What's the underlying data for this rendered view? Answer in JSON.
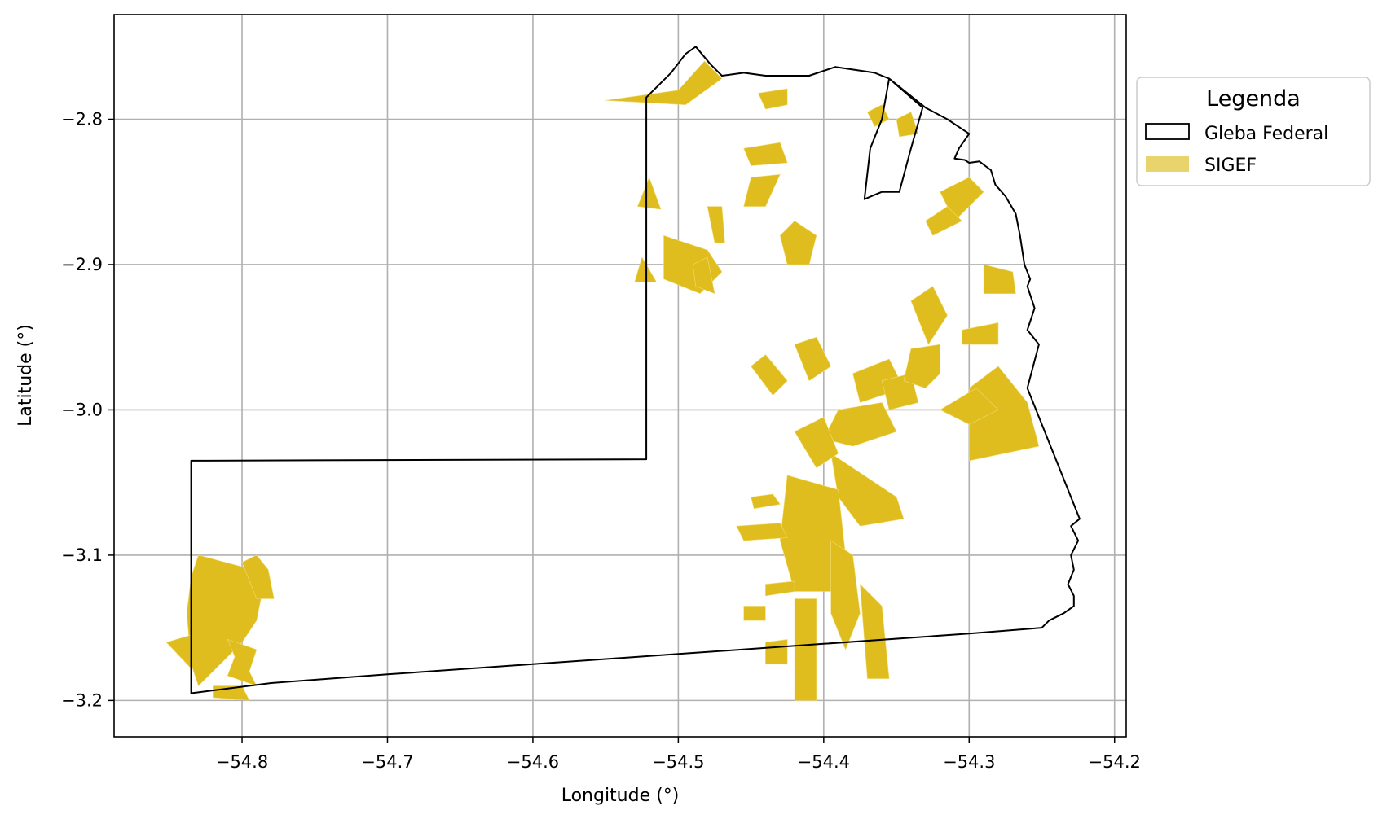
{
  "chart_data": {
    "type": "map",
    "xlabel": "Longitude (°)",
    "ylabel": "Latitude (°)",
    "xlim": [
      -54.888,
      -54.192
    ],
    "ylim": [
      -3.225,
      -2.728
    ],
    "xticks": [
      -54.8,
      -54.7,
      -54.6,
      -54.5,
      -54.4,
      -54.3,
      -54.2
    ],
    "yticks": [
      -2.8,
      -2.9,
      -3.0,
      -3.1,
      -3.2
    ],
    "xtick_labels": [
      "−54.8",
      "−54.7",
      "−54.6",
      "−54.5",
      "−54.4",
      "−54.3",
      "−54.2"
    ],
    "ytick_labels": [
      "−2.8",
      "−2.9",
      "−3.0",
      "−3.1",
      "−3.2"
    ],
    "grid": true,
    "legend": {
      "title": "Legenda",
      "placement": "outside-right-top",
      "entries": [
        {
          "label": "Gleba Federal",
          "type": "outline",
          "color": "#000000"
        },
        {
          "label": "SIGEF",
          "type": "fill",
          "color": "#e8d36c"
        }
      ]
    },
    "colors": {
      "gleba_outline": "#000000",
      "sigef_fill": "#dfbd1f",
      "grid": "#b0b0b0"
    },
    "gleba_federal": [
      [
        -54.835,
        -3.195
      ],
      [
        -54.78,
        -3.188
      ],
      [
        -54.7,
        -3.182
      ],
      [
        -54.6,
        -3.175
      ],
      [
        -54.5,
        -3.168
      ],
      [
        -54.4,
        -3.161
      ],
      [
        -54.3,
        -3.154
      ],
      [
        -54.25,
        -3.15
      ],
      [
        -54.245,
        -3.145
      ],
      [
        -54.235,
        -3.14
      ],
      [
        -54.228,
        -3.135
      ],
      [
        -54.228,
        -3.128
      ],
      [
        -54.232,
        -3.12
      ],
      [
        -54.228,
        -3.11
      ],
      [
        -54.23,
        -3.1
      ],
      [
        -54.225,
        -3.09
      ],
      [
        -54.23,
        -3.08
      ],
      [
        -54.224,
        -3.075
      ],
      [
        -54.26,
        -2.985
      ],
      [
        -54.252,
        -2.955
      ],
      [
        -54.26,
        -2.945
      ],
      [
        -54.255,
        -2.93
      ],
      [
        -54.26,
        -2.915
      ],
      [
        -54.258,
        -2.91
      ],
      [
        -54.262,
        -2.9
      ],
      [
        -54.265,
        -2.88
      ],
      [
        -54.268,
        -2.865
      ],
      [
        -54.275,
        -2.853
      ],
      [
        -54.282,
        -2.845
      ],
      [
        -54.285,
        -2.835
      ],
      [
        -54.293,
        -2.829
      ],
      [
        -54.3,
        -2.83
      ],
      [
        -54.303,
        -2.828
      ],
      [
        -54.31,
        -2.827
      ],
      [
        -54.307,
        -2.82
      ],
      [
        -54.3,
        -2.81
      ],
      [
        -54.315,
        -2.8
      ],
      [
        -54.33,
        -2.792
      ],
      [
        -54.355,
        -2.772
      ],
      [
        -54.365,
        -2.768
      ],
      [
        -54.392,
        -2.764
      ],
      [
        -54.41,
        -2.77
      ],
      [
        -54.44,
        -2.77
      ],
      [
        -54.455,
        -2.768
      ],
      [
        -54.47,
        -2.77
      ],
      [
        -54.478,
        -2.762
      ],
      [
        -54.488,
        -2.75
      ],
      [
        -54.495,
        -2.755
      ],
      [
        -54.505,
        -2.768
      ],
      [
        -54.522,
        -2.785
      ],
      [
        -54.522,
        -3.034
      ],
      [
        -54.835,
        -3.035
      ],
      [
        -54.835,
        -3.195
      ]
    ],
    "gleba_federal_inner": [
      [
        -54.355,
        -2.772
      ],
      [
        -54.36,
        -2.8
      ],
      [
        -54.368,
        -2.82
      ],
      [
        -54.372,
        -2.855
      ],
      [
        -54.365,
        -2.852
      ],
      [
        -54.36,
        -2.85
      ],
      [
        -54.355,
        -2.85
      ],
      [
        -54.348,
        -2.85
      ],
      [
        -54.34,
        -2.82
      ],
      [
        -54.332,
        -2.792
      ],
      [
        -54.355,
        -2.772
      ]
    ],
    "sigef_parcels": [
      [
        [
          -54.83,
          -3.1
        ],
        [
          -54.8,
          -3.108
        ],
        [
          -54.79,
          -3.113
        ],
        [
          -54.787,
          -3.13
        ],
        [
          -54.79,
          -3.145
        ],
        [
          -54.8,
          -3.16
        ],
        [
          -54.815,
          -3.175
        ],
        [
          -54.83,
          -3.19
        ],
        [
          -54.835,
          -3.175
        ],
        [
          -54.838,
          -3.14
        ],
        [
          -54.835,
          -3.115
        ]
      ],
      [
        [
          -54.835,
          -3.155
        ],
        [
          -54.852,
          -3.16
        ],
        [
          -54.835,
          -3.178
        ]
      ],
      [
        [
          -54.81,
          -3.158
        ],
        [
          -54.805,
          -3.17
        ],
        [
          -54.81,
          -3.183
        ],
        [
          -54.79,
          -3.19
        ],
        [
          -54.795,
          -3.18
        ],
        [
          -54.79,
          -3.165
        ]
      ],
      [
        [
          -54.82,
          -3.19
        ],
        [
          -54.8,
          -3.19
        ],
        [
          -54.795,
          -3.2
        ],
        [
          -54.82,
          -3.198
        ]
      ],
      [
        [
          -54.8,
          -3.105
        ],
        [
          -54.79,
          -3.1
        ],
        [
          -54.782,
          -3.11
        ],
        [
          -54.778,
          -3.13
        ],
        [
          -54.79,
          -3.13
        ]
      ],
      [
        [
          -54.55,
          -2.787
        ],
        [
          -54.5,
          -2.78
        ],
        [
          -54.482,
          -2.76
        ],
        [
          -54.47,
          -2.772
        ],
        [
          -54.495,
          -2.79
        ]
      ],
      [
        [
          -54.52,
          -2.84
        ],
        [
          -54.512,
          -2.862
        ],
        [
          -54.528,
          -2.86
        ]
      ],
      [
        [
          -54.51,
          -2.88
        ],
        [
          -54.48,
          -2.89
        ],
        [
          -54.47,
          -2.905
        ],
        [
          -54.485,
          -2.92
        ],
        [
          -54.51,
          -2.91
        ]
      ],
      [
        [
          -54.525,
          -2.895
        ],
        [
          -54.515,
          -2.912
        ],
        [
          -54.53,
          -2.912
        ]
      ],
      [
        [
          -54.445,
          -2.782
        ],
        [
          -54.425,
          -2.779
        ],
        [
          -54.425,
          -2.79
        ],
        [
          -54.44,
          -2.793
        ]
      ],
      [
        [
          -54.43,
          -2.88
        ],
        [
          -54.42,
          -2.87
        ],
        [
          -54.405,
          -2.88
        ],
        [
          -54.41,
          -2.9
        ],
        [
          -54.425,
          -2.9
        ]
      ],
      [
        [
          -54.45,
          -2.84
        ],
        [
          -54.43,
          -2.838
        ],
        [
          -54.44,
          -2.86
        ],
        [
          -54.455,
          -2.86
        ]
      ],
      [
        [
          -54.455,
          -2.82
        ],
        [
          -54.43,
          -2.816
        ],
        [
          -54.425,
          -2.83
        ],
        [
          -54.45,
          -2.832
        ]
      ],
      [
        [
          -54.48,
          -2.86
        ],
        [
          -54.47,
          -2.86
        ],
        [
          -54.468,
          -2.885
        ],
        [
          -54.475,
          -2.885
        ]
      ],
      [
        [
          -54.49,
          -2.9
        ],
        [
          -54.48,
          -2.895
        ],
        [
          -54.475,
          -2.92
        ],
        [
          -54.488,
          -2.915
        ]
      ],
      [
        [
          -54.45,
          -2.97
        ],
        [
          -54.44,
          -2.962
        ],
        [
          -54.425,
          -2.98
        ],
        [
          -54.435,
          -2.99
        ]
      ],
      [
        [
          -54.42,
          -2.955
        ],
        [
          -54.405,
          -2.95
        ],
        [
          -54.395,
          -2.97
        ],
        [
          -54.41,
          -2.98
        ]
      ],
      [
        [
          -54.38,
          -2.975
        ],
        [
          -54.355,
          -2.965
        ],
        [
          -54.345,
          -2.985
        ],
        [
          -54.375,
          -2.995
        ]
      ],
      [
        [
          -54.36,
          -2.98
        ],
        [
          -54.34,
          -2.975
        ],
        [
          -54.335,
          -2.995
        ],
        [
          -54.355,
          -3.0
        ]
      ],
      [
        [
          -54.34,
          -2.925
        ],
        [
          -54.325,
          -2.915
        ],
        [
          -54.315,
          -2.935
        ],
        [
          -54.328,
          -2.955
        ]
      ],
      [
        [
          -54.34,
          -2.958
        ],
        [
          -54.32,
          -2.955
        ],
        [
          -54.32,
          -2.975
        ],
        [
          -54.33,
          -2.985
        ],
        [
          -54.345,
          -2.98
        ]
      ],
      [
        [
          -54.3,
          -2.985
        ],
        [
          -54.28,
          -2.97
        ],
        [
          -54.26,
          -2.995
        ],
        [
          -54.252,
          -3.025
        ],
        [
          -54.3,
          -3.035
        ]
      ],
      [
        [
          -54.32,
          -3.0
        ],
        [
          -54.295,
          -2.985
        ],
        [
          -54.28,
          -3.0
        ],
        [
          -54.3,
          -3.01
        ]
      ],
      [
        [
          -54.39,
          -3.0
        ],
        [
          -54.36,
          -2.995
        ],
        [
          -54.35,
          -3.015
        ],
        [
          -54.38,
          -3.025
        ],
        [
          -54.4,
          -3.02
        ]
      ],
      [
        [
          -54.395,
          -3.03
        ],
        [
          -54.38,
          -3.04
        ],
        [
          -54.35,
          -3.06
        ],
        [
          -54.345,
          -3.075
        ],
        [
          -54.375,
          -3.08
        ],
        [
          -54.39,
          -3.06
        ]
      ],
      [
        [
          -54.425,
          -3.045
        ],
        [
          -54.39,
          -3.055
        ],
        [
          -54.385,
          -3.1
        ],
        [
          -54.395,
          -3.125
        ],
        [
          -54.42,
          -3.125
        ],
        [
          -54.43,
          -3.09
        ]
      ],
      [
        [
          -54.395,
          -3.09
        ],
        [
          -54.38,
          -3.1
        ],
        [
          -54.375,
          -3.14
        ],
        [
          -54.385,
          -3.165
        ],
        [
          -54.395,
          -3.14
        ]
      ],
      [
        [
          -54.42,
          -3.13
        ],
        [
          -54.405,
          -3.13
        ],
        [
          -54.405,
          -3.2
        ],
        [
          -54.42,
          -3.2
        ]
      ],
      [
        [
          -54.375,
          -3.12
        ],
        [
          -54.36,
          -3.135
        ],
        [
          -54.355,
          -3.185
        ],
        [
          -54.37,
          -3.185
        ]
      ],
      [
        [
          -54.42,
          -3.015
        ],
        [
          -54.4,
          -3.005
        ],
        [
          -54.39,
          -3.03
        ],
        [
          -54.405,
          -3.04
        ]
      ],
      [
        [
          -54.46,
          -3.08
        ],
        [
          -54.43,
          -3.078
        ],
        [
          -54.425,
          -3.088
        ],
        [
          -54.455,
          -3.09
        ]
      ],
      [
        [
          -54.45,
          -3.06
        ],
        [
          -54.435,
          -3.058
        ],
        [
          -54.43,
          -3.065
        ],
        [
          -54.448,
          -3.068
        ]
      ],
      [
        [
          -54.44,
          -3.16
        ],
        [
          -54.425,
          -3.158
        ],
        [
          -54.425,
          -3.175
        ],
        [
          -54.44,
          -3.175
        ]
      ],
      [
        [
          -54.455,
          -3.135
        ],
        [
          -54.44,
          -3.135
        ],
        [
          -54.44,
          -3.145
        ],
        [
          -54.455,
          -3.145
        ]
      ],
      [
        [
          -54.44,
          -3.12
        ],
        [
          -54.42,
          -3.118
        ],
        [
          -54.42,
          -3.125
        ],
        [
          -54.44,
          -3.128
        ]
      ],
      [
        [
          -54.29,
          -2.9
        ],
        [
          -54.27,
          -2.905
        ],
        [
          -54.268,
          -2.92
        ],
        [
          -54.29,
          -2.92
        ]
      ],
      [
        [
          -54.305,
          -2.945
        ],
        [
          -54.28,
          -2.94
        ],
        [
          -54.28,
          -2.955
        ],
        [
          -54.305,
          -2.955
        ]
      ],
      [
        [
          -54.32,
          -2.85
        ],
        [
          -54.3,
          -2.84
        ],
        [
          -54.29,
          -2.85
        ],
        [
          -54.31,
          -2.87
        ]
      ],
      [
        [
          -54.33,
          -2.87
        ],
        [
          -54.315,
          -2.86
        ],
        [
          -54.305,
          -2.87
        ],
        [
          -54.325,
          -2.88
        ]
      ],
      [
        [
          -54.35,
          -2.8
        ],
        [
          -54.34,
          -2.795
        ],
        [
          -54.335,
          -2.81
        ],
        [
          -54.348,
          -2.812
        ]
      ],
      [
        [
          -54.37,
          -2.795
        ],
        [
          -54.36,
          -2.79
        ],
        [
          -54.355,
          -2.8
        ],
        [
          -54.365,
          -2.805
        ]
      ]
    ]
  }
}
